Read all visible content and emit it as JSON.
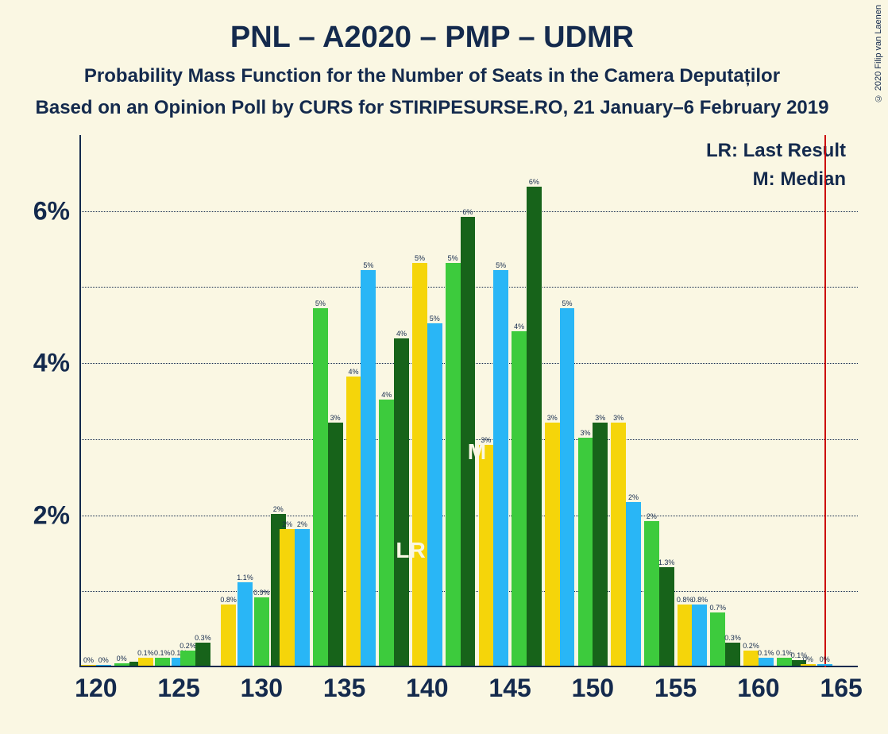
{
  "title": "PNL – A2020 – PMP – UDMR",
  "subtitle1": "Probability Mass Function for the Number of Seats in the Camera Deputaților",
  "subtitle2": "Based on an Opinion Poll by CURS for STIRIPESURSE.RO, 21 January–6 February 2019",
  "copyright": "© 2020 Filip van Laenen",
  "legend": {
    "lr": "LR: Last Result",
    "m": "M: Median"
  },
  "chart": {
    "type": "bar",
    "background_color": "#faf7e3",
    "text_color": "#142a4d",
    "title_fontsize": 38,
    "subtitle_fontsize": 24,
    "axis_label_fontsize": 32,
    "bar_label_fontsize": 9,
    "legend_fontsize": 24,
    "xlim": [
      119,
      166
    ],
    "ylim": [
      0,
      7
    ],
    "ytick_step": 1,
    "xticks": [
      120,
      125,
      130,
      135,
      140,
      145,
      150,
      155,
      160,
      165
    ],
    "yticks": [
      2,
      4,
      6
    ],
    "ytick_labels": [
      "2%",
      "4%",
      "6%"
    ],
    "gridlines_y": [
      1,
      2,
      3,
      4,
      5,
      6
    ],
    "red_line_x": 164,
    "lr_marker_x": 139,
    "m_marker_x": 143,
    "series_colors": [
      "#f5d50a",
      "#29b6f6",
      "#3dcb3d",
      "#17631a"
    ],
    "groups": [
      {
        "x": 120,
        "bars": [
          {
            "s": 0,
            "v": 0,
            "l": "0%"
          },
          {
            "s": 1,
            "v": 0,
            "l": "0%"
          }
        ]
      },
      {
        "x": 122,
        "bars": [
          {
            "s": 2,
            "v": 0.03,
            "l": "0%"
          },
          {
            "s": 3,
            "v": 0.05,
            "l": null
          }
        ]
      },
      {
        "x": 123,
        "bars": [
          {
            "s": 0,
            "v": 0.1,
            "l": "0.1%"
          }
        ]
      },
      {
        "x": 124,
        "bars": [
          {
            "s": 2,
            "v": 0.1,
            "l": "0.1%"
          }
        ]
      },
      {
        "x": 125,
        "bars": [
          {
            "s": 1,
            "v": 0.1,
            "l": "0.1%"
          }
        ]
      },
      {
        "x": 126,
        "bars": [
          {
            "s": 2,
            "v": 0.2,
            "l": "0.2%"
          },
          {
            "s": 3,
            "v": 0.3,
            "l": "0.3%"
          }
        ]
      },
      {
        "x": 128,
        "bars": [
          {
            "s": 0,
            "v": 0.8,
            "l": "0.8%"
          }
        ]
      },
      {
        "x": 129,
        "bars": [
          {
            "s": 1,
            "v": 1.1,
            "l": "1.1%"
          }
        ]
      },
      {
        "x": 130,
        "bars": [
          {
            "s": 2,
            "v": 0.9,
            "l": "0.9%"
          }
        ]
      },
      {
        "x": 131,
        "bars": [
          {
            "s": 3,
            "v": 2.0,
            "l": "2%"
          }
        ]
      },
      {
        "x": 132,
        "bars": [
          {
            "s": 0,
            "v": 1.8,
            "l": "2%"
          },
          {
            "s": 1,
            "v": 1.8,
            "l": "2%"
          }
        ]
      },
      {
        "x": 134,
        "bars": [
          {
            "s": 2,
            "v": 4.7,
            "l": "5%"
          },
          {
            "s": 3,
            "v": 3.2,
            "l": "3%"
          }
        ]
      },
      {
        "x": 136,
        "bars": [
          {
            "s": 0,
            "v": 3.8,
            "l": "4%"
          },
          {
            "s": 1,
            "v": 5.2,
            "l": "5%"
          }
        ]
      },
      {
        "x": 138,
        "bars": [
          {
            "s": 2,
            "v": 3.5,
            "l": "4%"
          },
          {
            "s": 3,
            "v": 4.3,
            "l": "4%"
          }
        ]
      },
      {
        "x": 140,
        "bars": [
          {
            "s": 0,
            "v": 5.3,
            "l": "5%"
          },
          {
            "s": 1,
            "v": 4.5,
            "l": "5%"
          }
        ]
      },
      {
        "x": 142,
        "bars": [
          {
            "s": 2,
            "v": 5.3,
            "l": "5%"
          },
          {
            "s": 3,
            "v": 5.9,
            "l": "6%"
          }
        ]
      },
      {
        "x": 144,
        "bars": [
          {
            "s": 0,
            "v": 2.9,
            "l": "3%"
          },
          {
            "s": 1,
            "v": 5.2,
            "l": "5%"
          }
        ]
      },
      {
        "x": 146,
        "bars": [
          {
            "s": 2,
            "v": 4.4,
            "l": "4%"
          },
          {
            "s": 3,
            "v": 6.3,
            "l": "6%"
          }
        ]
      },
      {
        "x": 148,
        "bars": [
          {
            "s": 0,
            "v": 3.2,
            "l": "3%"
          },
          {
            "s": 1,
            "v": 4.7,
            "l": "5%"
          }
        ]
      },
      {
        "x": 150,
        "bars": [
          {
            "s": 2,
            "v": 3.0,
            "l": "3%"
          },
          {
            "s": 3,
            "v": 3.2,
            "l": "3%"
          }
        ]
      },
      {
        "x": 152,
        "bars": [
          {
            "s": 0,
            "v": 3.2,
            "l": "3%"
          },
          {
            "s": 1,
            "v": 2.15,
            "l": "2%"
          }
        ]
      },
      {
        "x": 154,
        "bars": [
          {
            "s": 2,
            "v": 1.9,
            "l": "2%"
          },
          {
            "s": 3,
            "v": 1.3,
            "l": "1.3%"
          }
        ]
      },
      {
        "x": 156,
        "bars": [
          {
            "s": 0,
            "v": 0.8,
            "l": "0.8%"
          },
          {
            "s": 1,
            "v": 0.8,
            "l": "0.8%"
          }
        ]
      },
      {
        "x": 158,
        "bars": [
          {
            "s": 2,
            "v": 0.7,
            "l": "0.7%"
          },
          {
            "s": 3,
            "v": 0.3,
            "l": "0.3%"
          }
        ]
      },
      {
        "x": 160,
        "bars": [
          {
            "s": 0,
            "v": 0.2,
            "l": "0.2%"
          },
          {
            "s": 1,
            "v": 0.1,
            "l": "0.1%"
          }
        ]
      },
      {
        "x": 162,
        "bars": [
          {
            "s": 2,
            "v": 0.1,
            "l": "0.1%"
          },
          {
            "s": 3,
            "v": 0.07,
            "l": "0.1%"
          }
        ]
      },
      {
        "x": 163,
        "bars": [
          {
            "s": 0,
            "v": 0.02,
            "l": "0%"
          }
        ]
      },
      {
        "x": 164,
        "bars": [
          {
            "s": 1,
            "v": 0.02,
            "l": "0%"
          }
        ]
      }
    ]
  }
}
